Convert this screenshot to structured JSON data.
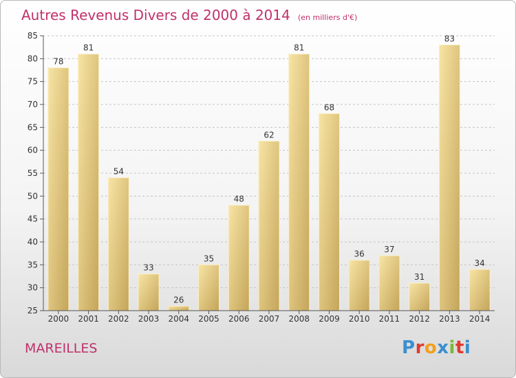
{
  "chart_data": {
    "type": "bar",
    "title": "Autres Revenus Divers de 2000 à 2014",
    "unit_label": "(en milliers d'€)",
    "categories": [
      "2000",
      "2001",
      "2002",
      "2003",
      "2004",
      "2005",
      "2006",
      "2007",
      "2008",
      "2009",
      "2010",
      "2011",
      "2012",
      "2013",
      "2014"
    ],
    "values": [
      78,
      81,
      54,
      33,
      26,
      35,
      48,
      62,
      81,
      68,
      36,
      37,
      31,
      83,
      34
    ],
    "ylim": [
      25,
      85
    ],
    "yticks": [
      25,
      30,
      35,
      40,
      45,
      50,
      55,
      60,
      65,
      70,
      75,
      80,
      85
    ],
    "grid": "horizontal-dashed",
    "xlabel": "",
    "ylabel": "",
    "colors": {
      "bar_light": "#f5dc96",
      "bar_dark": "#c8aa60",
      "title": "#c0306a"
    }
  },
  "footer": {
    "commune": "MAREILLES",
    "logo_text": "Proxiti",
    "logo_colors": [
      "#3a8fd0",
      "#e03a2f",
      "#f0a020",
      "#3a8fd0",
      "#7ab83a",
      "#e03a2f",
      "#3a8fd0"
    ]
  }
}
